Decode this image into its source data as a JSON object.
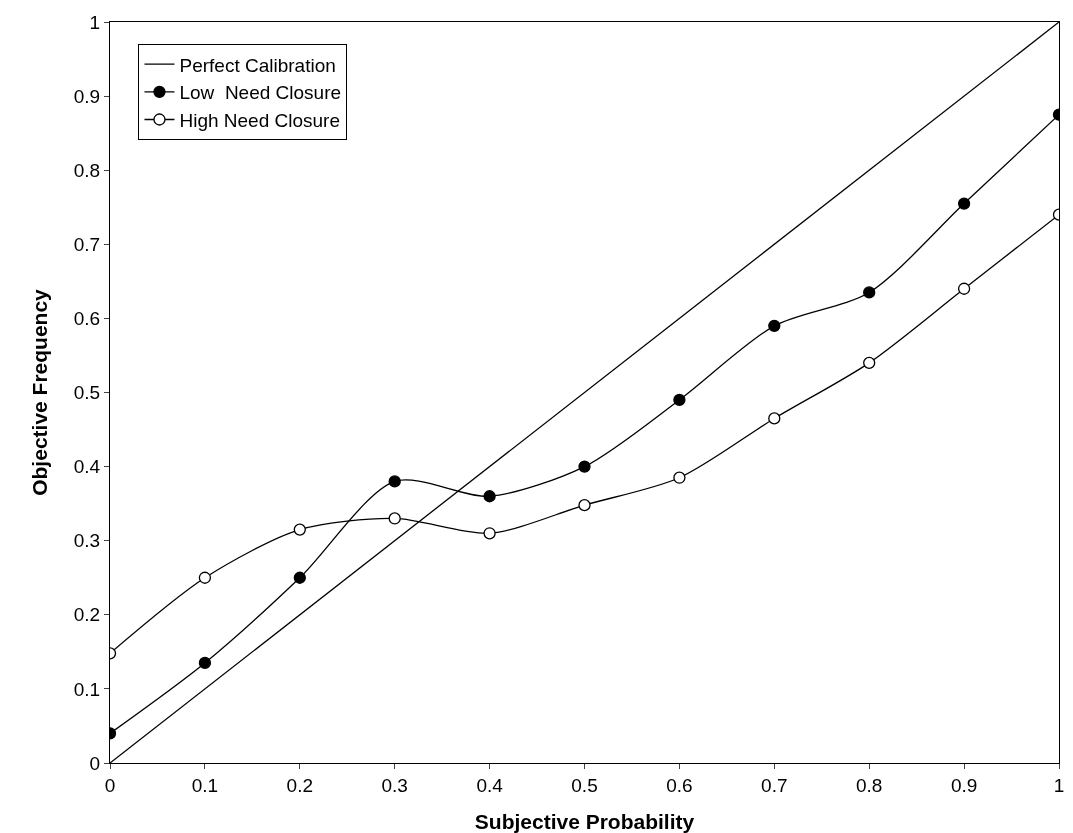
{
  "chart_data": {
    "type": "line",
    "xlabel": "Subjective Probability",
    "ylabel": "Objective Frequency",
    "x": [
      0,
      0.1,
      0.2,
      0.3,
      0.4,
      0.5,
      0.6,
      0.7,
      0.8,
      0.9,
      1
    ],
    "series": [
      {
        "name": "Perfect Calibration",
        "color": "#000000",
        "marker": "none",
        "x": [
          0,
          1
        ],
        "values": [
          0,
          1
        ]
      },
      {
        "name": "Low  Need Closure",
        "color": "#000000",
        "marker": "circle",
        "values": [
          0.04,
          0.135,
          0.25,
          0.38,
          0.36,
          0.4,
          0.49,
          0.59,
          0.635,
          0.755,
          0.875
        ]
      },
      {
        "name": "High Need Closure",
        "color": "#000000",
        "marker": "circle-open",
        "values": [
          0.148,
          0.25,
          0.315,
          0.33,
          0.31,
          0.348,
          0.385,
          0.465,
          0.54,
          0.64,
          0.74
        ]
      }
    ],
    "xlim": [
      0,
      1
    ],
    "ylim": [
      0,
      1
    ],
    "xticks": [
      0,
      0.1,
      0.2,
      0.3,
      0.4,
      0.5,
      0.6,
      0.7,
      0.8,
      0.9,
      1
    ],
    "yticks": [
      0,
      0.1,
      0.2,
      0.3,
      0.4,
      0.5,
      0.6,
      0.7,
      0.8,
      0.9,
      1
    ],
    "grid": false,
    "legend": "top left",
    "line_style": "solid"
  }
}
